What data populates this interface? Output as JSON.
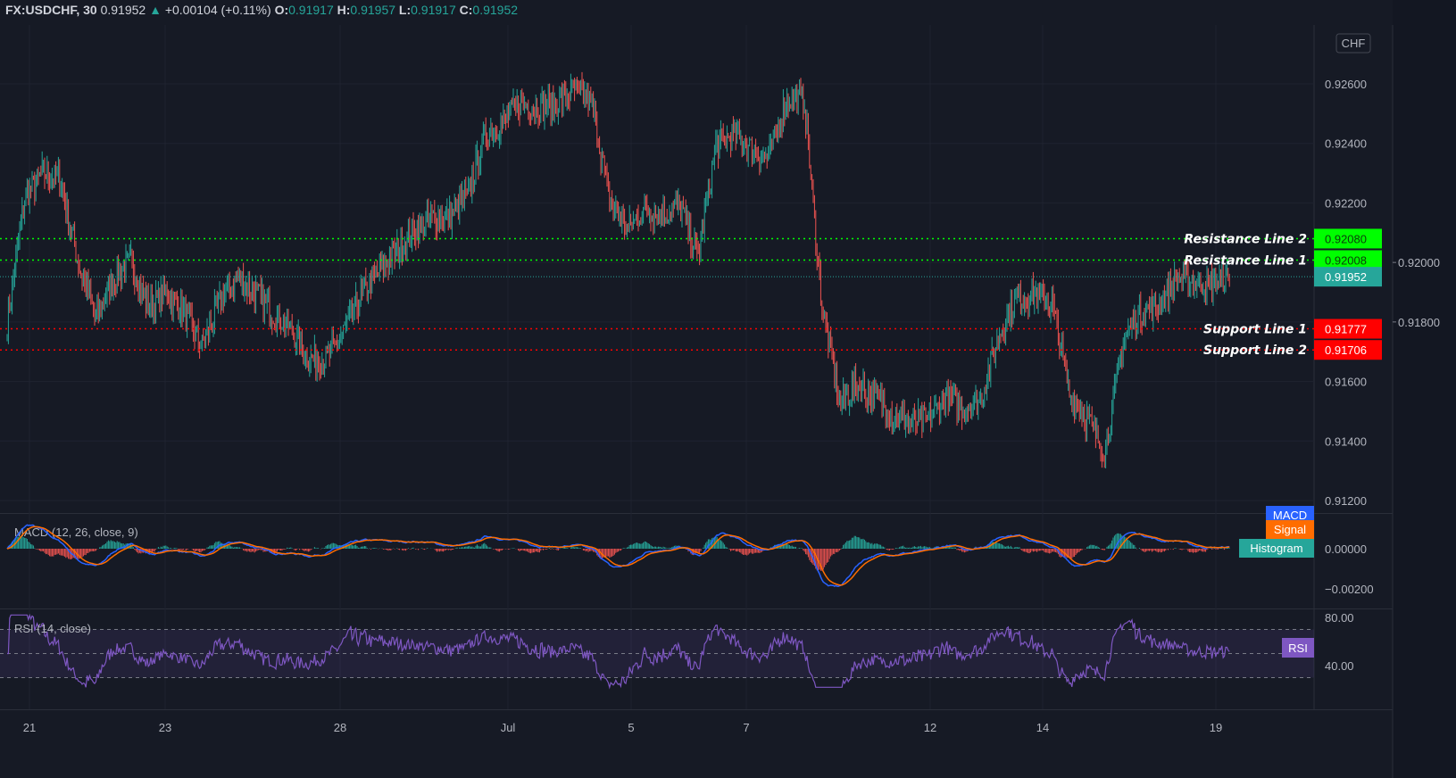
{
  "header": {
    "symbol": "FX:USDCHF, 30",
    "last": "0.91952",
    "change": "+0.00104 (+0.11%)",
    "o_label": "O:",
    "o": "0.91917",
    "h_label": "H:",
    "h": "0.91957",
    "l_label": "L:",
    "l": "0.91917",
    "c_label": "C:",
    "c": "0.91952"
  },
  "currency_badge": "CHF",
  "colors": {
    "background": "#161a25",
    "up": "#26a69a",
    "down": "#ef5350",
    "resistance": "#00ff00",
    "support": "#ff0000",
    "macd": "#2962ff",
    "signal": "#ff6d00",
    "rsi": "#7e57c2"
  },
  "chart_data": {
    "type": "candlestick",
    "interval": "30",
    "approx_close_path": [
      0.918,
      0.9222,
      0.923,
      0.9228,
      0.92,
      0.9181,
      0.9195,
      0.92,
      0.9185,
      0.919,
      0.9183,
      0.9172,
      0.9187,
      0.9195,
      0.919,
      0.9183,
      0.9178,
      0.9168,
      0.9167,
      0.9177,
      0.9189,
      0.9197,
      0.9204,
      0.9211,
      0.9215,
      0.9215,
      0.9223,
      0.9243,
      0.9247,
      0.9254,
      0.9252,
      0.9253,
      0.9258,
      0.9254,
      0.9221,
      0.9211,
      0.9218,
      0.9216,
      0.9219,
      0.9202,
      0.9239,
      0.9243,
      0.9238,
      0.9235,
      0.9255,
      0.9255,
      0.9185,
      0.9153,
      0.9159,
      0.9155,
      0.9149,
      0.9146,
      0.9147,
      0.9155,
      0.9151,
      0.9155,
      0.9176,
      0.9188,
      0.9189,
      0.9186,
      0.9155,
      0.9147,
      0.9136,
      0.9174,
      0.9183,
      0.9186,
      0.9195,
      0.9193,
      0.9193,
      0.91952
    ],
    "price_ticks": [
      "0.92600",
      "0.92400",
      "0.92200",
      "0.92000",
      "0.91800",
      "0.91600",
      "0.91400",
      "0.91200"
    ],
    "price_range": [
      0.9115,
      0.9275
    ],
    "date_ticks": [
      "21",
      "23",
      "28",
      "Jul",
      "5",
      "7",
      "12",
      "14",
      "19"
    ],
    "horizontal_lines": [
      {
        "name": "Resistance Line 2",
        "value": "0.92080",
        "type": "resistance"
      },
      {
        "name": "Resistance Line 1",
        "value": "0.92008",
        "type": "resistance"
      },
      {
        "name": "Support Line 1",
        "value": "0.91777",
        "type": "support"
      },
      {
        "name": "Support Line 2",
        "value": "0.91706",
        "type": "support"
      }
    ],
    "current_price": "0.91952",
    "macd": {
      "title": "MACD (12, 26, close, 9)",
      "ticks": [
        "0.00000",
        "−0.00200"
      ],
      "tags": [
        "MACD",
        "Signal",
        "Histogram"
      ]
    },
    "rsi": {
      "title": "RSI (14, close)",
      "ticks": [
        "80.00",
        "40.00"
      ],
      "tag": "RSI",
      "band": [
        30,
        70
      ]
    },
    "grid": true
  }
}
